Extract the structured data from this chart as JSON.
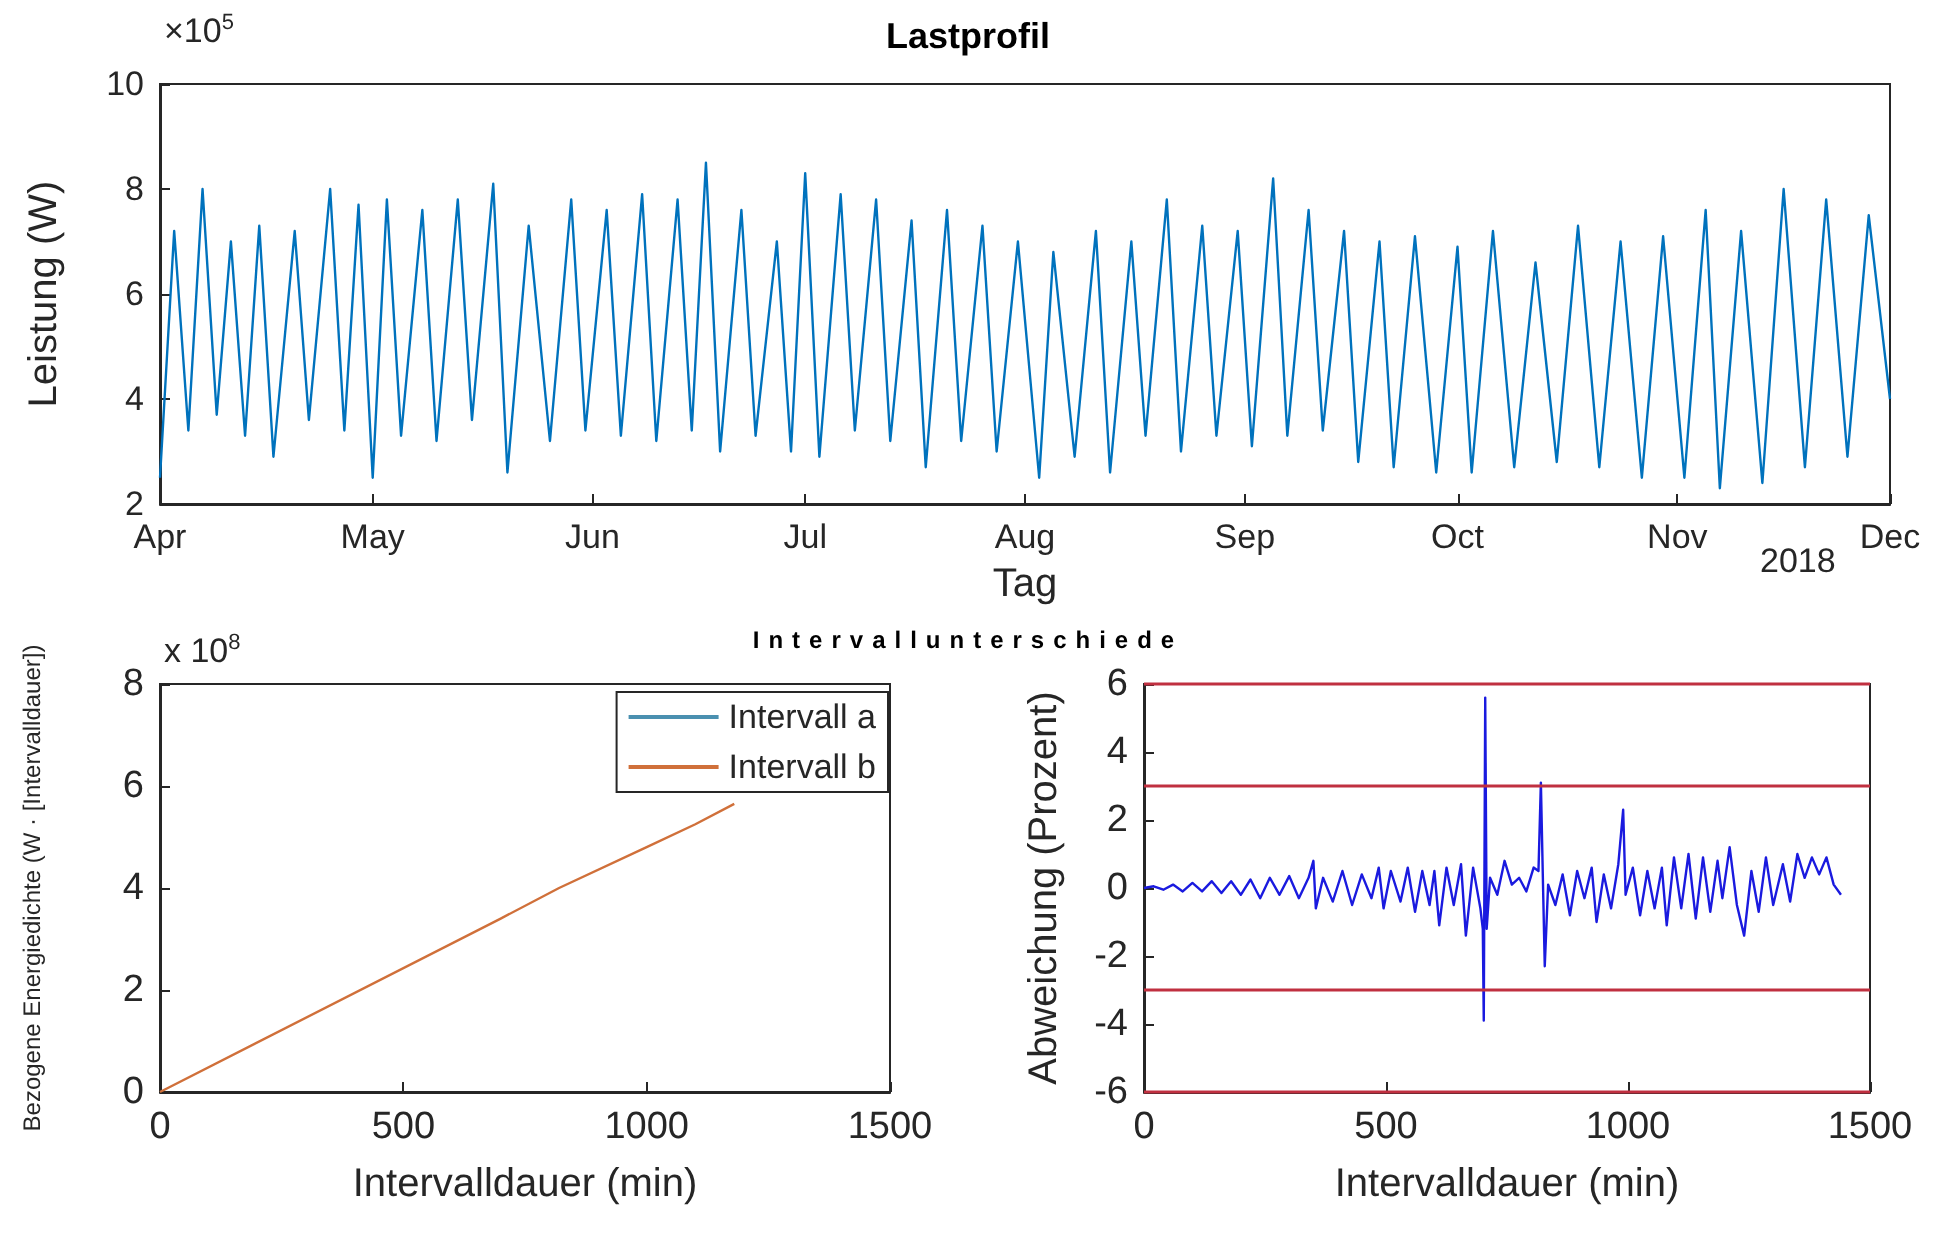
{
  "chart_data": [
    {
      "type": "line",
      "title": "Lastprofil",
      "xlabel": "Tag",
      "ylabel": "Leistung (W)",
      "annotations": [
        "×10$^{5}$",
        "2018"
      ],
      "xlim": [
        "2018-04-01",
        "2018-12-01"
      ],
      "xticks": [
        {
          "value": "2018-04-01",
          "label": "Apr"
        },
        {
          "value": "2018-05-01",
          "label": "May"
        },
        {
          "value": "2018-06-01",
          "label": "Jun"
        },
        {
          "value": "2018-07-01",
          "label": "Jul"
        },
        {
          "value": "2018-08-01",
          "label": "Aug"
        },
        {
          "value": "2018-09-01",
          "label": "Sep"
        },
        {
          "value": "2018-10-01",
          "label": "Oct"
        },
        {
          "value": "2018-11-01",
          "label": "Nov"
        },
        {
          "value": "2018-12-01",
          "label": "Dec"
        }
      ],
      "ylim": [
        2,
        10
      ],
      "yticks": [
        2,
        4,
        6,
        8,
        10
      ],
      "grid": false,
      "legend": false,
      "series": [
        {
          "color": "#0072bd",
          "x": [
            "2018-04-01",
            "2018-04-03",
            "2018-04-05",
            "2018-04-07",
            "2018-04-09",
            "2018-04-11",
            "2018-04-13",
            "2018-04-15",
            "2018-04-17",
            "2018-04-20",
            "2018-04-22",
            "2018-04-25",
            "2018-04-27",
            "2018-04-29",
            "2018-05-01",
            "2018-05-03",
            "2018-05-05",
            "2018-05-08",
            "2018-05-10",
            "2018-05-13",
            "2018-05-15",
            "2018-05-18",
            "2018-05-20",
            "2018-05-23",
            "2018-05-26",
            "2018-05-29",
            "2018-05-31",
            "2018-06-03",
            "2018-06-05",
            "2018-06-08",
            "2018-06-10",
            "2018-06-13",
            "2018-06-15",
            "2018-06-17",
            "2018-06-19",
            "2018-06-22",
            "2018-06-24",
            "2018-06-27",
            "2018-06-29",
            "2018-07-01",
            "2018-07-03",
            "2018-07-06",
            "2018-07-08",
            "2018-07-11",
            "2018-07-13",
            "2018-07-16",
            "2018-07-18",
            "2018-07-21",
            "2018-07-23",
            "2018-07-26",
            "2018-07-28",
            "2018-07-31",
            "2018-08-03",
            "2018-08-05",
            "2018-08-08",
            "2018-08-11",
            "2018-08-13",
            "2018-08-16",
            "2018-08-18",
            "2018-08-21",
            "2018-08-23",
            "2018-08-26",
            "2018-08-28",
            "2018-08-31",
            "2018-09-02",
            "2018-09-05",
            "2018-09-07",
            "2018-09-10",
            "2018-09-12",
            "2018-09-15",
            "2018-09-17",
            "2018-09-20",
            "2018-09-22",
            "2018-09-25",
            "2018-09-28",
            "2018-10-01",
            "2018-10-03",
            "2018-10-06",
            "2018-10-09",
            "2018-10-12",
            "2018-10-15",
            "2018-10-18",
            "2018-10-21",
            "2018-10-24",
            "2018-10-27",
            "2018-10-30",
            "2018-11-02",
            "2018-11-05",
            "2018-11-07",
            "2018-11-10",
            "2018-11-13",
            "2018-11-16",
            "2018-11-19",
            "2018-11-22",
            "2018-11-25",
            "2018-11-28",
            "2018-12-01"
          ],
          "values": [
            2.5,
            7.2,
            3.4,
            8.0,
            3.7,
            7.0,
            3.3,
            7.3,
            2.9,
            7.2,
            3.6,
            8.0,
            3.4,
            7.7,
            2.5,
            7.8,
            3.3,
            7.6,
            3.2,
            7.8,
            3.6,
            8.1,
            2.6,
            7.3,
            3.2,
            7.8,
            3.4,
            7.6,
            3.3,
            7.9,
            3.2,
            7.8,
            3.4,
            8.5,
            3.0,
            7.6,
            3.3,
            7.0,
            3.0,
            8.3,
            2.9,
            7.9,
            3.4,
            7.8,
            3.2,
            7.4,
            2.7,
            7.6,
            3.2,
            7.3,
            3.0,
            7.0,
            2.5,
            6.8,
            2.9,
            7.2,
            2.6,
            7.0,
            3.3,
            7.8,
            3.0,
            7.3,
            3.3,
            7.2,
            3.1,
            8.2,
            3.3,
            7.6,
            3.4,
            7.2,
            2.8,
            7.0,
            2.7,
            7.1,
            2.6,
            6.9,
            2.6,
            7.2,
            2.7,
            6.6,
            2.8,
            7.3,
            2.7,
            7.0,
            2.5,
            7.1,
            2.5,
            7.6,
            2.3,
            7.2,
            2.4,
            8.0,
            2.7,
            7.8,
            2.9,
            7.5,
            4.0
          ]
        }
      ]
    },
    {
      "type": "line",
      "title": "Intervallunterschiede",
      "xlabel": "Intervalldauer (min)",
      "ylabel": "Bezogene Energiedichte (W · [Intervalldauer])",
      "annotations": [
        "x 10$^{8}$"
      ],
      "xlim": [
        0,
        1500
      ],
      "xticks": [
        0,
        500,
        1000,
        1500
      ],
      "ylim": [
        0,
        8
      ],
      "yticks": [
        0,
        2,
        4,
        6,
        8
      ],
      "grid": false,
      "legend": "top right",
      "series": [
        {
          "name": "Intervall a",
          "color": "#4a90b0"
        },
        {
          "name": "Intervall b",
          "color": "#d0703a",
          "x": [
            0,
            700,
            820,
            1000,
            1100,
            1180
          ],
          "values": [
            0,
            3.4,
            4.0,
            4.8,
            5.25,
            5.65
          ]
        }
      ]
    },
    {
      "type": "line",
      "xlabel": "Intervalldauer (min)",
      "ylabel": "Abweichung (Prozent)",
      "xlim": [
        0,
        1500
      ],
      "xticks": [
        0,
        500,
        1000,
        1500
      ],
      "ylim": [
        -6,
        6
      ],
      "yticks": [
        -6,
        -4,
        -2,
        0,
        2,
        4,
        6
      ],
      "grid": false,
      "legend": false,
      "ref_lines": [
        {
          "axis": "y",
          "value": 6,
          "color": "#c03040"
        },
        {
          "axis": "y",
          "value": 3,
          "color": "#c03040"
        },
        {
          "axis": "y",
          "value": -3,
          "color": "#c03040"
        },
        {
          "axis": "y",
          "value": -6,
          "color": "#c03040"
        }
      ],
      "series": [
        {
          "color": "#1a1adf",
          "x": [
            0,
            20,
            40,
            60,
            80,
            100,
            120,
            140,
            160,
            180,
            200,
            220,
            240,
            260,
            280,
            300,
            320,
            340,
            350,
            355,
            370,
            390,
            410,
            430,
            450,
            470,
            485,
            495,
            510,
            530,
            545,
            560,
            575,
            590,
            600,
            610,
            625,
            640,
            655,
            665,
            680,
            695,
            700,
            702,
            705,
            708,
            715,
            730,
            745,
            760,
            775,
            790,
            805,
            815,
            820,
            825,
            828,
            835,
            850,
            865,
            880,
            895,
            910,
            925,
            935,
            950,
            965,
            980,
            990,
            995,
            1010,
            1025,
            1040,
            1055,
            1070,
            1080,
            1095,
            1110,
            1125,
            1140,
            1155,
            1170,
            1185,
            1195,
            1210,
            1225,
            1240,
            1255,
            1270,
            1285,
            1300,
            1320,
            1335,
            1350,
            1365,
            1380,
            1395,
            1410,
            1425,
            1440
          ],
          "values": [
            0,
            0.05,
            -0.05,
            0.1,
            -0.1,
            0.15,
            -0.1,
            0.2,
            -0.15,
            0.2,
            -0.2,
            0.25,
            -0.3,
            0.3,
            -0.2,
            0.35,
            -0.3,
            0.3,
            0.8,
            -0.6,
            0.3,
            -0.4,
            0.5,
            -0.5,
            0.4,
            -0.3,
            0.6,
            -0.6,
            0.5,
            -0.4,
            0.6,
            -0.7,
            0.5,
            -0.5,
            0.5,
            -1.1,
            0.6,
            -0.5,
            0.7,
            -1.4,
            0.6,
            -0.6,
            -1.2,
            -3.9,
            5.6,
            -1.2,
            0.3,
            -0.2,
            0.8,
            0.1,
            0.3,
            -0.1,
            0.6,
            0.5,
            3.1,
            -0.3,
            -2.3,
            0.1,
            -0.5,
            0.4,
            -0.8,
            0.5,
            -0.3,
            0.6,
            -1.0,
            0.4,
            -0.6,
            0.7,
            2.3,
            -0.2,
            0.6,
            -0.8,
            0.5,
            -0.6,
            0.6,
            -1.1,
            0.9,
            -0.6,
            1.0,
            -0.9,
            0.9,
            -0.7,
            0.8,
            -0.3,
            1.2,
            -0.5,
            -1.4,
            0.5,
            -0.7,
            0.9,
            -0.5,
            0.7,
            -0.4,
            1.0,
            0.3,
            0.9,
            0.4,
            0.9,
            0.1,
            -0.2
          ]
        }
      ]
    }
  ]
}
